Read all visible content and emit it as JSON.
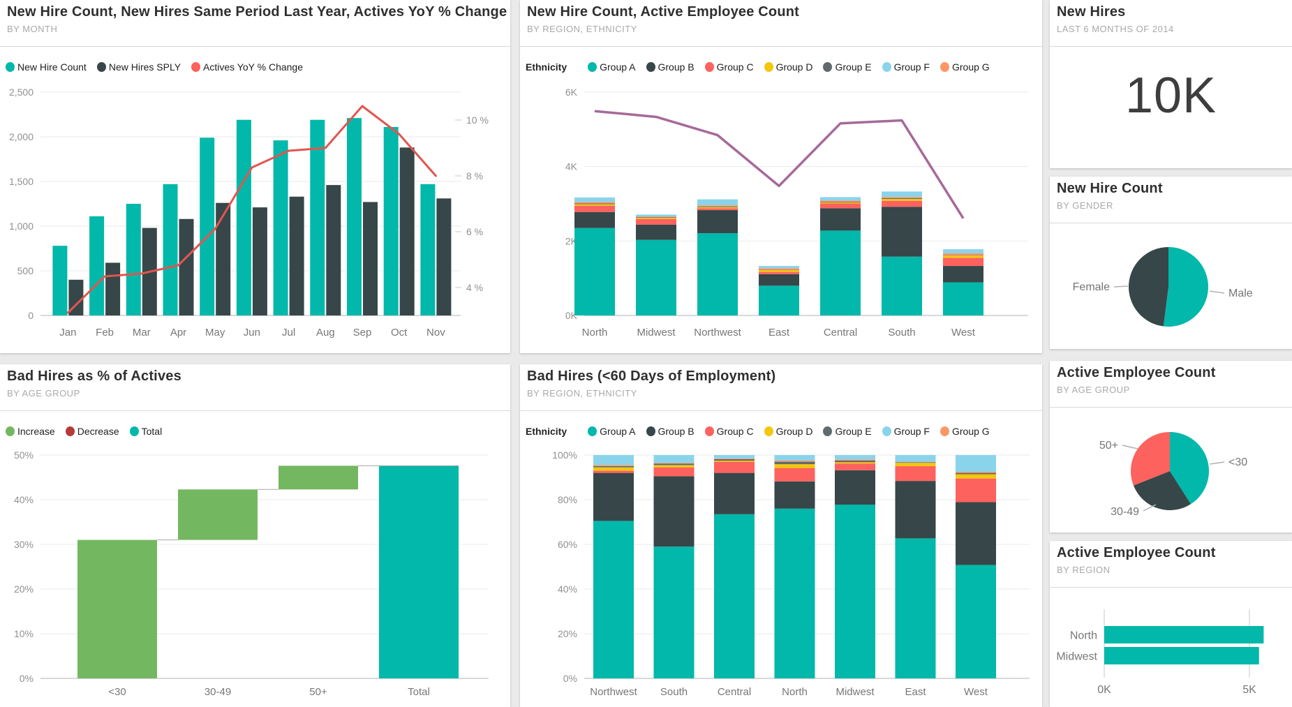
{
  "page": {
    "background": "#EAEAEA"
  },
  "palette": {
    "teal": "#01B8AA",
    "dark": "#374649",
    "red": "#FD625E",
    "yellow": "#F2C80F",
    "gray": "#5F6B6D",
    "lightBlue": "#8AD4EB",
    "orange": "#FE9666",
    "purple": "#A66999",
    "green": "#74B761",
    "darkRed": "#B73A3A",
    "lineRed": "#E0564F"
  },
  "cards": {
    "hires_by_month": {
      "title": "New Hire Count, New Hires Same Period Last Year, Actives YoY % Change",
      "subtitle": "BY MONTH"
    },
    "hires_by_region": {
      "title": "New Hire Count, Active Employee Count",
      "subtitle": "BY REGION, ETHNICITY"
    },
    "new_hires_kpi": {
      "title": "New Hires",
      "subtitle": "LAST 6 MONTHS OF 2014",
      "value": "10K"
    },
    "gender_pie": {
      "title": "New Hire Count",
      "subtitle": "BY GENDER"
    },
    "waterfall": {
      "title": "Bad Hires as % of Actives",
      "subtitle": "BY AGE GROUP"
    },
    "bad_hires_stacked": {
      "title": "Bad Hires (<60 Days of Employment)",
      "subtitle": "BY REGION, ETHNICITY"
    },
    "age_pie": {
      "title": "Active Employee Count",
      "subtitle": "BY AGE GROUP"
    },
    "region_bars": {
      "title": "Active Employee Count",
      "subtitle": "BY REGION"
    }
  },
  "chart_data": [
    {
      "id": "combo_month",
      "type": "bar",
      "title": "New Hire Count, New Hires Same Period Last Year, Actives YoY % Change",
      "subtitle": "BY MONTH",
      "categories": [
        "Jan",
        "Feb",
        "Mar",
        "Apr",
        "May",
        "Jun",
        "Jul",
        "Aug",
        "Sep",
        "Oct",
        "Nov"
      ],
      "series": [
        {
          "name": "New Hire Count",
          "type": "bar",
          "color": "#01B8AA",
          "values": [
            780,
            1110,
            1250,
            1470,
            1990,
            2190,
            1960,
            2190,
            2210,
            2110,
            1470
          ]
        },
        {
          "name": "New Hires SPLY",
          "type": "bar",
          "color": "#374649",
          "values": [
            400,
            590,
            980,
            1080,
            1260,
            1210,
            1330,
            1460,
            1270,
            1880,
            1310
          ]
        },
        {
          "name": "Actives YoY % Change",
          "type": "line",
          "color": "#E0564F",
          "legend_color": "#FD625E",
          "axis": "right",
          "values": [
            3.1,
            4.4,
            4.5,
            4.8,
            6.1,
            8.3,
            8.9,
            9.0,
            10.5,
            9.5,
            8.0
          ]
        }
      ],
      "left_axis": {
        "max": 2500,
        "ticks": [
          0,
          500,
          1000,
          1500,
          2000,
          2500
        ],
        "labels": [
          "0",
          "500",
          "1,000",
          "1,500",
          "2,000",
          "2,500"
        ]
      },
      "right_axis": {
        "min": 3,
        "max": 11,
        "ticks": [
          4,
          6,
          8,
          10
        ],
        "labels": [
          "4 %",
          "6 %",
          "8 %",
          "10 %"
        ]
      },
      "grid": true,
      "legend_position": "top"
    },
    {
      "id": "stacked_region",
      "type": "bar",
      "title": "New Hire Count, Active Employee Count",
      "subtitle": "BY REGION, ETHNICITY",
      "legend_title": "Ethnicity",
      "categories": [
        "North",
        "Midwest",
        "Northwest",
        "East",
        "Central",
        "South",
        "West"
      ],
      "stack_series": [
        {
          "name": "Group A",
          "color": "#01B8AA",
          "values": [
            2350,
            2030,
            2210,
            800,
            2280,
            1580,
            890
          ]
        },
        {
          "name": "Group B",
          "color": "#374649",
          "values": [
            430,
            410,
            620,
            310,
            600,
            1340,
            440
          ]
        },
        {
          "name": "Group C",
          "color": "#FD625E",
          "values": [
            170,
            150,
            50,
            60,
            130,
            160,
            220
          ]
        },
        {
          "name": "Group D",
          "color": "#F2C80F",
          "values": [
            40,
            30,
            30,
            50,
            30,
            50,
            60
          ]
        },
        {
          "name": "Group E",
          "color": "#5F6B6D",
          "values": [
            20,
            20,
            20,
            10,
            20,
            20,
            10
          ]
        },
        {
          "name": "Group G",
          "color": "#FE9666",
          "values": [
            40,
            20,
            30,
            40,
            30,
            30,
            50
          ]
        },
        {
          "name": "Group F",
          "color": "#8AD4EB",
          "values": [
            120,
            50,
            160,
            60,
            90,
            150,
            110
          ]
        }
      ],
      "legend": [
        {
          "label": "Group A",
          "color": "#01B8AA"
        },
        {
          "label": "Group B",
          "color": "#374649"
        },
        {
          "label": "Group C",
          "color": "#FD625E"
        },
        {
          "label": "Group D",
          "color": "#F2C80F"
        },
        {
          "label": "Group E",
          "color": "#5F6B6D"
        },
        {
          "label": "Group F",
          "color": "#8AD4EB"
        },
        {
          "label": "Group G",
          "color": "#FE9666"
        }
      ],
      "line_series": {
        "name": "Active Employee Count",
        "color": "#A66999",
        "values": [
          5490,
          5335,
          4845,
          3480,
          5160,
          5240,
          2610
        ]
      },
      "y_axis": {
        "max": 6000,
        "ticks": [
          0,
          2000,
          4000,
          6000
        ],
        "labels": [
          "0K",
          "2K",
          "4K",
          "6K"
        ]
      }
    },
    {
      "id": "kpi_new_hires",
      "type": "table",
      "title": "New Hires",
      "subtitle": "LAST 6 MONTHS OF 2014",
      "value": "10K"
    },
    {
      "id": "gender",
      "type": "pie",
      "title": "New Hire Count",
      "subtitle": "BY GENDER",
      "slices": [
        {
          "label": "Male",
          "pct": 52,
          "color": "#01B8AA"
        },
        {
          "label": "Female",
          "pct": 48,
          "color": "#374649"
        }
      ]
    },
    {
      "id": "waterfall_bad_hires",
      "type": "bar",
      "title": "Bad Hires as % of Actives",
      "subtitle": "BY AGE GROUP",
      "categories": [
        "<30",
        "30-49",
        "50+",
        "Total"
      ],
      "increments": [
        31.0,
        11.3,
        5.3
      ],
      "total": 47.6,
      "legend": [
        {
          "label": "Increase",
          "color": "#74B761"
        },
        {
          "label": "Decrease",
          "color": "#B73A3A"
        },
        {
          "label": "Total",
          "color": "#01B8AA"
        }
      ],
      "y_axis": {
        "max": 50,
        "ticks": [
          0,
          10,
          20,
          30,
          40,
          50
        ],
        "labels": [
          "0%",
          "10%",
          "20%",
          "30%",
          "40%",
          "50%"
        ]
      }
    },
    {
      "id": "stacked100_bad_hires",
      "type": "bar",
      "title": "Bad Hires (<60 Days of Employment)",
      "subtitle": "BY REGION, ETHNICITY",
      "legend_title": "Ethnicity",
      "categories": [
        "Northwest",
        "South",
        "Central",
        "North",
        "Midwest",
        "East",
        "West"
      ],
      "stack_series": [
        {
          "name": "Group A",
          "color": "#01B8AA",
          "values": [
            70.5,
            59.0,
            73.5,
            76.0,
            77.8,
            62.7,
            50.8
          ]
        },
        {
          "name": "Group B",
          "color": "#374649",
          "values": [
            21.5,
            31.5,
            18.5,
            12.2,
            15.4,
            25.7,
            28.1
          ]
        },
        {
          "name": "Group C",
          "color": "#FD625E",
          "values": [
            1.0,
            4.0,
            5.0,
            6.0,
            3.0,
            6.6,
            10.6
          ]
        },
        {
          "name": "Group D",
          "color": "#F2C80F",
          "values": [
            1.5,
            1.0,
            0.5,
            1.7,
            0.6,
            1.5,
            1.9
          ]
        },
        {
          "name": "Group E",
          "color": "#5F6B6D",
          "values": [
            0.5,
            0.7,
            0.7,
            1.1,
            0.7,
            0.3,
            0.6
          ]
        },
        {
          "name": "Group G",
          "color": "#FE9666",
          "values": [
            0.5,
            0.3,
            0.3,
            0.5,
            0.5,
            0.2,
            0.5
          ]
        },
        {
          "name": "Group F",
          "color": "#8AD4EB",
          "values": [
            4.5,
            3.5,
            1.5,
            2.5,
            2.0,
            3.0,
            7.5
          ]
        }
      ],
      "legend": [
        {
          "label": "Group A",
          "color": "#01B8AA"
        },
        {
          "label": "Group B",
          "color": "#374649"
        },
        {
          "label": "Group C",
          "color": "#FD625E"
        },
        {
          "label": "Group D",
          "color": "#F2C80F"
        },
        {
          "label": "Group E",
          "color": "#5F6B6D"
        },
        {
          "label": "Group F",
          "color": "#8AD4EB"
        },
        {
          "label": "Group G",
          "color": "#FE9666"
        }
      ],
      "y_axis": {
        "max": 100,
        "ticks": [
          0,
          20,
          40,
          60,
          80,
          100
        ],
        "labels": [
          "0%",
          "20%",
          "40%",
          "60%",
          "80%",
          "100%"
        ]
      }
    },
    {
      "id": "age",
      "type": "pie",
      "title": "Active Employee Count",
      "subtitle": "BY AGE GROUP",
      "slices": [
        {
          "label": "<30",
          "pct": 41,
          "color": "#01B8AA"
        },
        {
          "label": "30-49",
          "pct": 28,
          "color": "#374649"
        },
        {
          "label": "50+",
          "pct": 31,
          "color": "#FD625E"
        }
      ]
    },
    {
      "id": "region_hbar",
      "type": "bar",
      "title": "Active Employee Count",
      "subtitle": "BY REGION",
      "categories": [
        "North",
        "Midwest"
      ],
      "values": [
        5490,
        5330
      ],
      "x_axis": {
        "max": 5600,
        "ticks": [
          0,
          5000
        ],
        "labels": [
          "0K",
          "5K"
        ]
      }
    }
  ]
}
